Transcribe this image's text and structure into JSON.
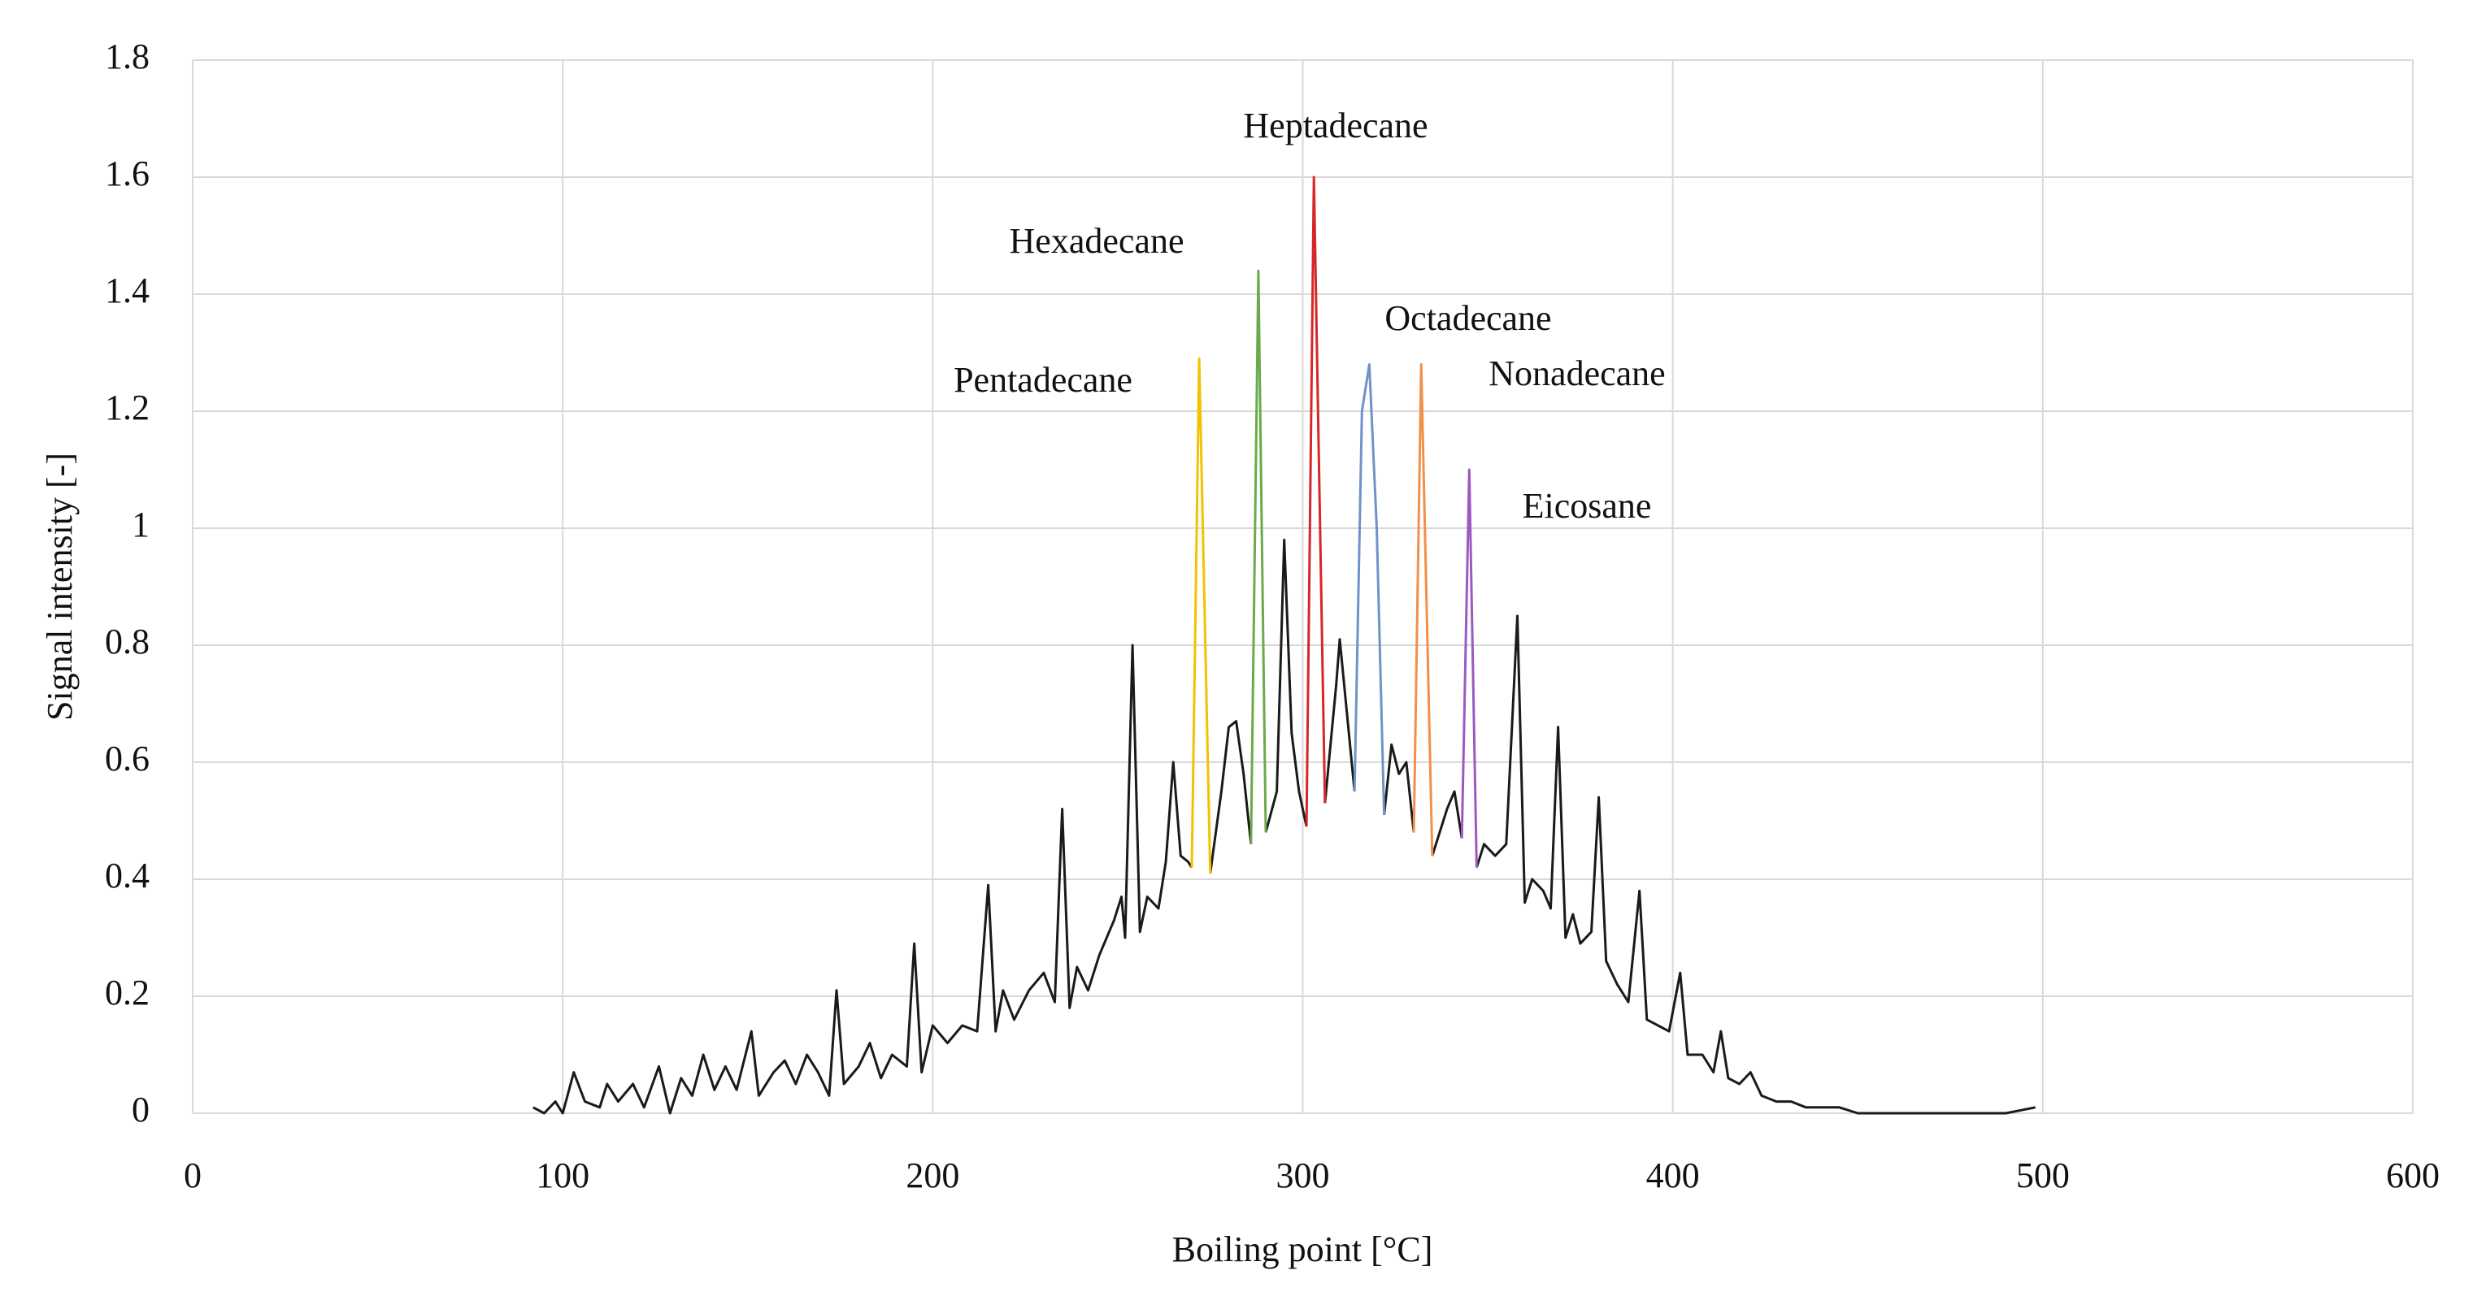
{
  "chart_data": {
    "type": "line",
    "x_label": "Boiling point [°C]",
    "y_label": "Signal intensity [-]",
    "xlim": [
      0,
      600
    ],
    "xticks": [
      0,
      100,
      200,
      300,
      400,
      500,
      600
    ],
    "ylim": [
      0,
      1.8
    ],
    "yticks": [
      0,
      0.2,
      0.4,
      0.6,
      0.8,
      1,
      1.2,
      1.4,
      1.6,
      1.8
    ],
    "grid": true,
    "series": [
      {
        "color": "#1a1a1a",
        "x": [
          92,
          95,
          98,
          100,
          103,
          106,
          110,
          112,
          115,
          119,
          122,
          126,
          129,
          132,
          135,
          138,
          141,
          144,
          147,
          151,
          153,
          157,
          160,
          163,
          166,
          169,
          172,
          174,
          176,
          180,
          183,
          186,
          189,
          193,
          195,
          197,
          200,
          204,
          208,
          212,
          215,
          217,
          219,
          222,
          226,
          230,
          233,
          235,
          237,
          239,
          242,
          245,
          249,
          251,
          252,
          254,
          256,
          258,
          261,
          263,
          265,
          267,
          269,
          270,
          272,
          275,
          278,
          280,
          282,
          284,
          286,
          288,
          290,
          293,
          295,
          297,
          299,
          301,
          303,
          306,
          309,
          310,
          312,
          314,
          318,
          322,
          324,
          326,
          328,
          330,
          332,
          335,
          337,
          339,
          341,
          343,
          345,
          347,
          349,
          352,
          355,
          358,
          360,
          362,
          365,
          367,
          369,
          371,
          373,
          375,
          378,
          380,
          382,
          385,
          388,
          391,
          393,
          396,
          399,
          402,
          404,
          408,
          411,
          413,
          415,
          418,
          421,
          424,
          428,
          432,
          436,
          440,
          445,
          450,
          460,
          470,
          480,
          490,
          498
        ],
        "values": [
          0.01,
          0,
          0.02,
          0,
          0.07,
          0.02,
          0.01,
          0.05,
          0.02,
          0.05,
          0.01,
          0.08,
          0,
          0.06,
          0.03,
          0.1,
          0.04,
          0.08,
          0.04,
          0.14,
          0.03,
          0.07,
          0.09,
          0.05,
          0.1,
          0.07,
          0.03,
          0.21,
          0.05,
          0.08,
          0.12,
          0.06,
          0.1,
          0.08,
          0.29,
          0.07,
          0.15,
          0.12,
          0.15,
          0.14,
          0.39,
          0.14,
          0.21,
          0.16,
          0.21,
          0.24,
          0.19,
          0.52,
          0.18,
          0.25,
          0.21,
          0.27,
          0.33,
          0.37,
          0.3,
          0.8,
          0.31,
          0.37,
          0.35,
          0.43,
          0.6,
          0.44,
          0.43,
          0.42,
          null,
          0.41,
          0.55,
          0.66,
          0.67,
          0.58,
          0.46,
          null,
          0.48,
          0.55,
          0.98,
          0.65,
          0.55,
          0.49,
          null,
          0.53,
          0.73,
          0.81,
          0.68,
          0.55,
          null,
          0.51,
          0.63,
          0.58,
          0.6,
          0.48,
          null,
          0.44,
          0.48,
          0.52,
          0.55,
          0.47,
          null,
          0.42,
          0.46,
          0.44,
          0.46,
          0.85,
          0.36,
          0.4,
          0.38,
          0.35,
          0.66,
          0.3,
          0.34,
          0.29,
          0.31,
          0.54,
          0.26,
          0.22,
          0.19,
          0.38,
          0.16,
          0.15,
          0.14,
          0.24,
          0.1,
          0.1,
          0.07,
          0.14,
          0.06,
          0.05,
          0.07,
          0.03,
          0.02,
          0.02,
          0.01,
          0.01,
          0.01,
          0,
          0,
          0,
          0,
          0,
          0.01
        ]
      },
      {
        "name": "Pentadecane",
        "color": "#f2c200",
        "x": [
          270,
          272,
          275
        ],
        "values": [
          0.42,
          1.29,
          0.41
        ]
      },
      {
        "name": "Hexadecane",
        "color": "#6aaa4a",
        "x": [
          286,
          288,
          290
        ],
        "values": [
          0.46,
          1.44,
          0.48
        ]
      },
      {
        "name": "Heptadecane",
        "color": "#d62728",
        "x": [
          301,
          303,
          306
        ],
        "values": [
          0.49,
          1.6,
          0.53
        ]
      },
      {
        "name": "Octadecane",
        "color": "#6f93c8",
        "x": [
          314,
          316,
          318,
          320,
          322
        ],
        "values": [
          0.55,
          1.2,
          1.28,
          1.0,
          0.51
        ]
      },
      {
        "name": "Nonadecane",
        "color": "#f0904a",
        "x": [
          330,
          332,
          335
        ],
        "values": [
          0.48,
          1.28,
          0.44
        ]
      },
      {
        "name": "Eicosane",
        "color": "#9b59c0",
        "x": [
          343,
          345,
          347
        ],
        "values": [
          0.47,
          1.1,
          0.42
        ]
      }
    ]
  }
}
